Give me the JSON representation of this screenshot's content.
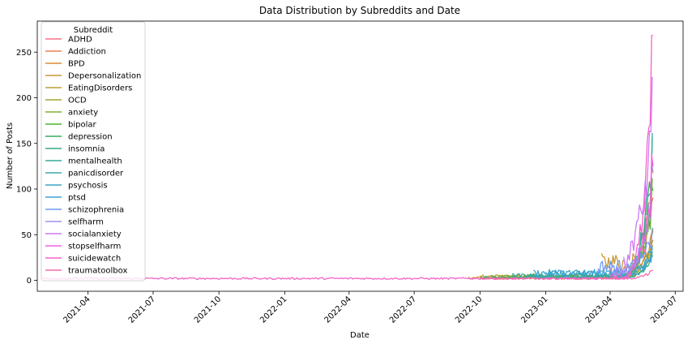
{
  "chart_data": {
    "type": "line",
    "title": "Data Distribution by Subreddits and Date",
    "xlabel": "Date",
    "ylabel": "Number of Posts",
    "xlim": [
      "2021-01-20",
      "2023-07-12"
    ],
    "ylim": [
      -12,
      284
    ],
    "xticks": [
      "2021-04",
      "2021-07",
      "2021-10",
      "2022-01",
      "2022-04",
      "2022-07",
      "2022-10",
      "2023-01",
      "2023-04",
      "2023-07"
    ],
    "yticks": [
      0,
      50,
      100,
      150,
      200,
      250
    ],
    "grid": false,
    "legend": {
      "title": "Subreddit",
      "placement": "top-left"
    },
    "series": [
      {
        "name": "ADHD",
        "color": "#f77189",
        "start": "2023-04-15",
        "end": "2023-05-31",
        "base": 10,
        "peak": 95
      },
      {
        "name": "Addiction",
        "color": "#ee7f50",
        "start": "2022-10-01",
        "end": "2023-05-31",
        "base": 2,
        "peak": 135
      },
      {
        "name": "BPD",
        "color": "#de8c33",
        "start": "2022-09-15",
        "end": "2023-05-31",
        "base": 3,
        "peak": 60
      },
      {
        "name": "Depersonalization",
        "color": "#c89833",
        "start": "2023-03-20",
        "end": "2023-05-31",
        "base": 20,
        "peak": 45
      },
      {
        "name": "EatingDisorders",
        "color": "#bba032",
        "start": "2022-10-01",
        "end": "2023-05-31",
        "base": 4,
        "peak": 55
      },
      {
        "name": "OCD",
        "color": "#a2a632",
        "start": "2022-10-15",
        "end": "2023-05-31",
        "base": 4,
        "peak": 40
      },
      {
        "name": "anxiety",
        "color": "#82ae32",
        "start": "2022-11-01",
        "end": "2023-05-31",
        "base": 4,
        "peak": 120
      },
      {
        "name": "bipolar",
        "color": "#4fb32d",
        "start": "2023-04-15",
        "end": "2023-05-31",
        "base": 6,
        "peak": 110
      },
      {
        "name": "depression",
        "color": "#35ae5e",
        "start": "2022-12-01",
        "end": "2023-05-31",
        "base": 5,
        "peak": 170
      },
      {
        "name": "insomnia",
        "color": "#36ac85",
        "start": "2022-10-01",
        "end": "2023-05-31",
        "base": 3,
        "peak": 30
      },
      {
        "name": "mentalhealth",
        "color": "#37aa9e",
        "start": "2022-11-15",
        "end": "2023-05-31",
        "base": 5,
        "peak": 185
      },
      {
        "name": "panicdisorder",
        "color": "#38a8b1",
        "start": "2022-12-01",
        "end": "2023-05-31",
        "base": 4,
        "peak": 35
      },
      {
        "name": "psychosis",
        "color": "#3aa6c3",
        "start": "2022-12-15",
        "end": "2023-05-31",
        "base": 8,
        "peak": 40
      },
      {
        "name": "ptsd",
        "color": "#3ba2d8",
        "start": "2023-01-01",
        "end": "2023-05-31",
        "base": 8,
        "peak": 35
      },
      {
        "name": "schizophrenia",
        "color": "#6e9af4",
        "start": "2023-03-15",
        "end": "2023-05-31",
        "base": 15,
        "peak": 60
      },
      {
        "name": "selfharm",
        "color": "#a38ff4",
        "start": "2023-04-01",
        "end": "2023-05-31",
        "base": 10,
        "peak": 130
      },
      {
        "name": "socialanxiety",
        "color": "#cc7af4",
        "start": "2023-04-20",
        "end": "2023-05-31",
        "base": 30,
        "peak": 225
      },
      {
        "name": "stopselfharm",
        "color": "#f45fe1",
        "start": "2023-04-01",
        "end": "2023-05-31",
        "base": 5,
        "peak": 140
      },
      {
        "name": "suicidewatch",
        "color": "#f563c9",
        "start": "2021-01-27",
        "end": "2023-05-31",
        "base": 2,
        "peak": 270
      },
      {
        "name": "traumatoolbox",
        "color": "#f66bb0",
        "start": "2022-10-01",
        "end": "2023-05-31",
        "base": 2,
        "peak": 12
      }
    ]
  }
}
